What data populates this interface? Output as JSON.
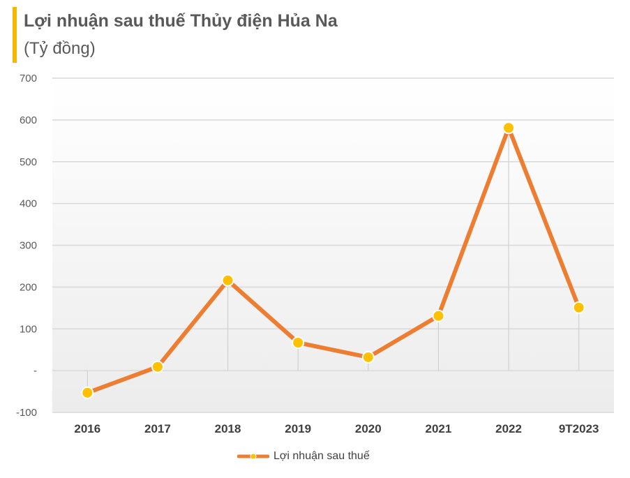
{
  "title": "Lợi nhuận sau thuế Thủy điện Hủa Na",
  "subtitle": "(Tỷ đồng)",
  "colors": {
    "accent_bar": "#f5b800",
    "line": "#ed7d31",
    "marker": "#ffc000"
  },
  "chart_data": {
    "type": "line",
    "categories": [
      "2016",
      "2017",
      "2018",
      "2019",
      "2020",
      "2021",
      "2022",
      "9T2023"
    ],
    "series": [
      {
        "name": "Lợi nhuận sau thuế",
        "values": [
          -53,
          9,
          216,
          67,
          32,
          131,
          581,
          151
        ]
      }
    ],
    "ylim": [
      -100,
      700
    ],
    "yticks": [
      -100,
      0,
      100,
      200,
      300,
      400,
      500,
      600,
      700
    ],
    "ytick_labels": [
      "-100",
      "-",
      "100",
      "200",
      "300",
      "400",
      "500",
      "600",
      "700"
    ],
    "grid": true,
    "legend_position": "bottom"
  }
}
